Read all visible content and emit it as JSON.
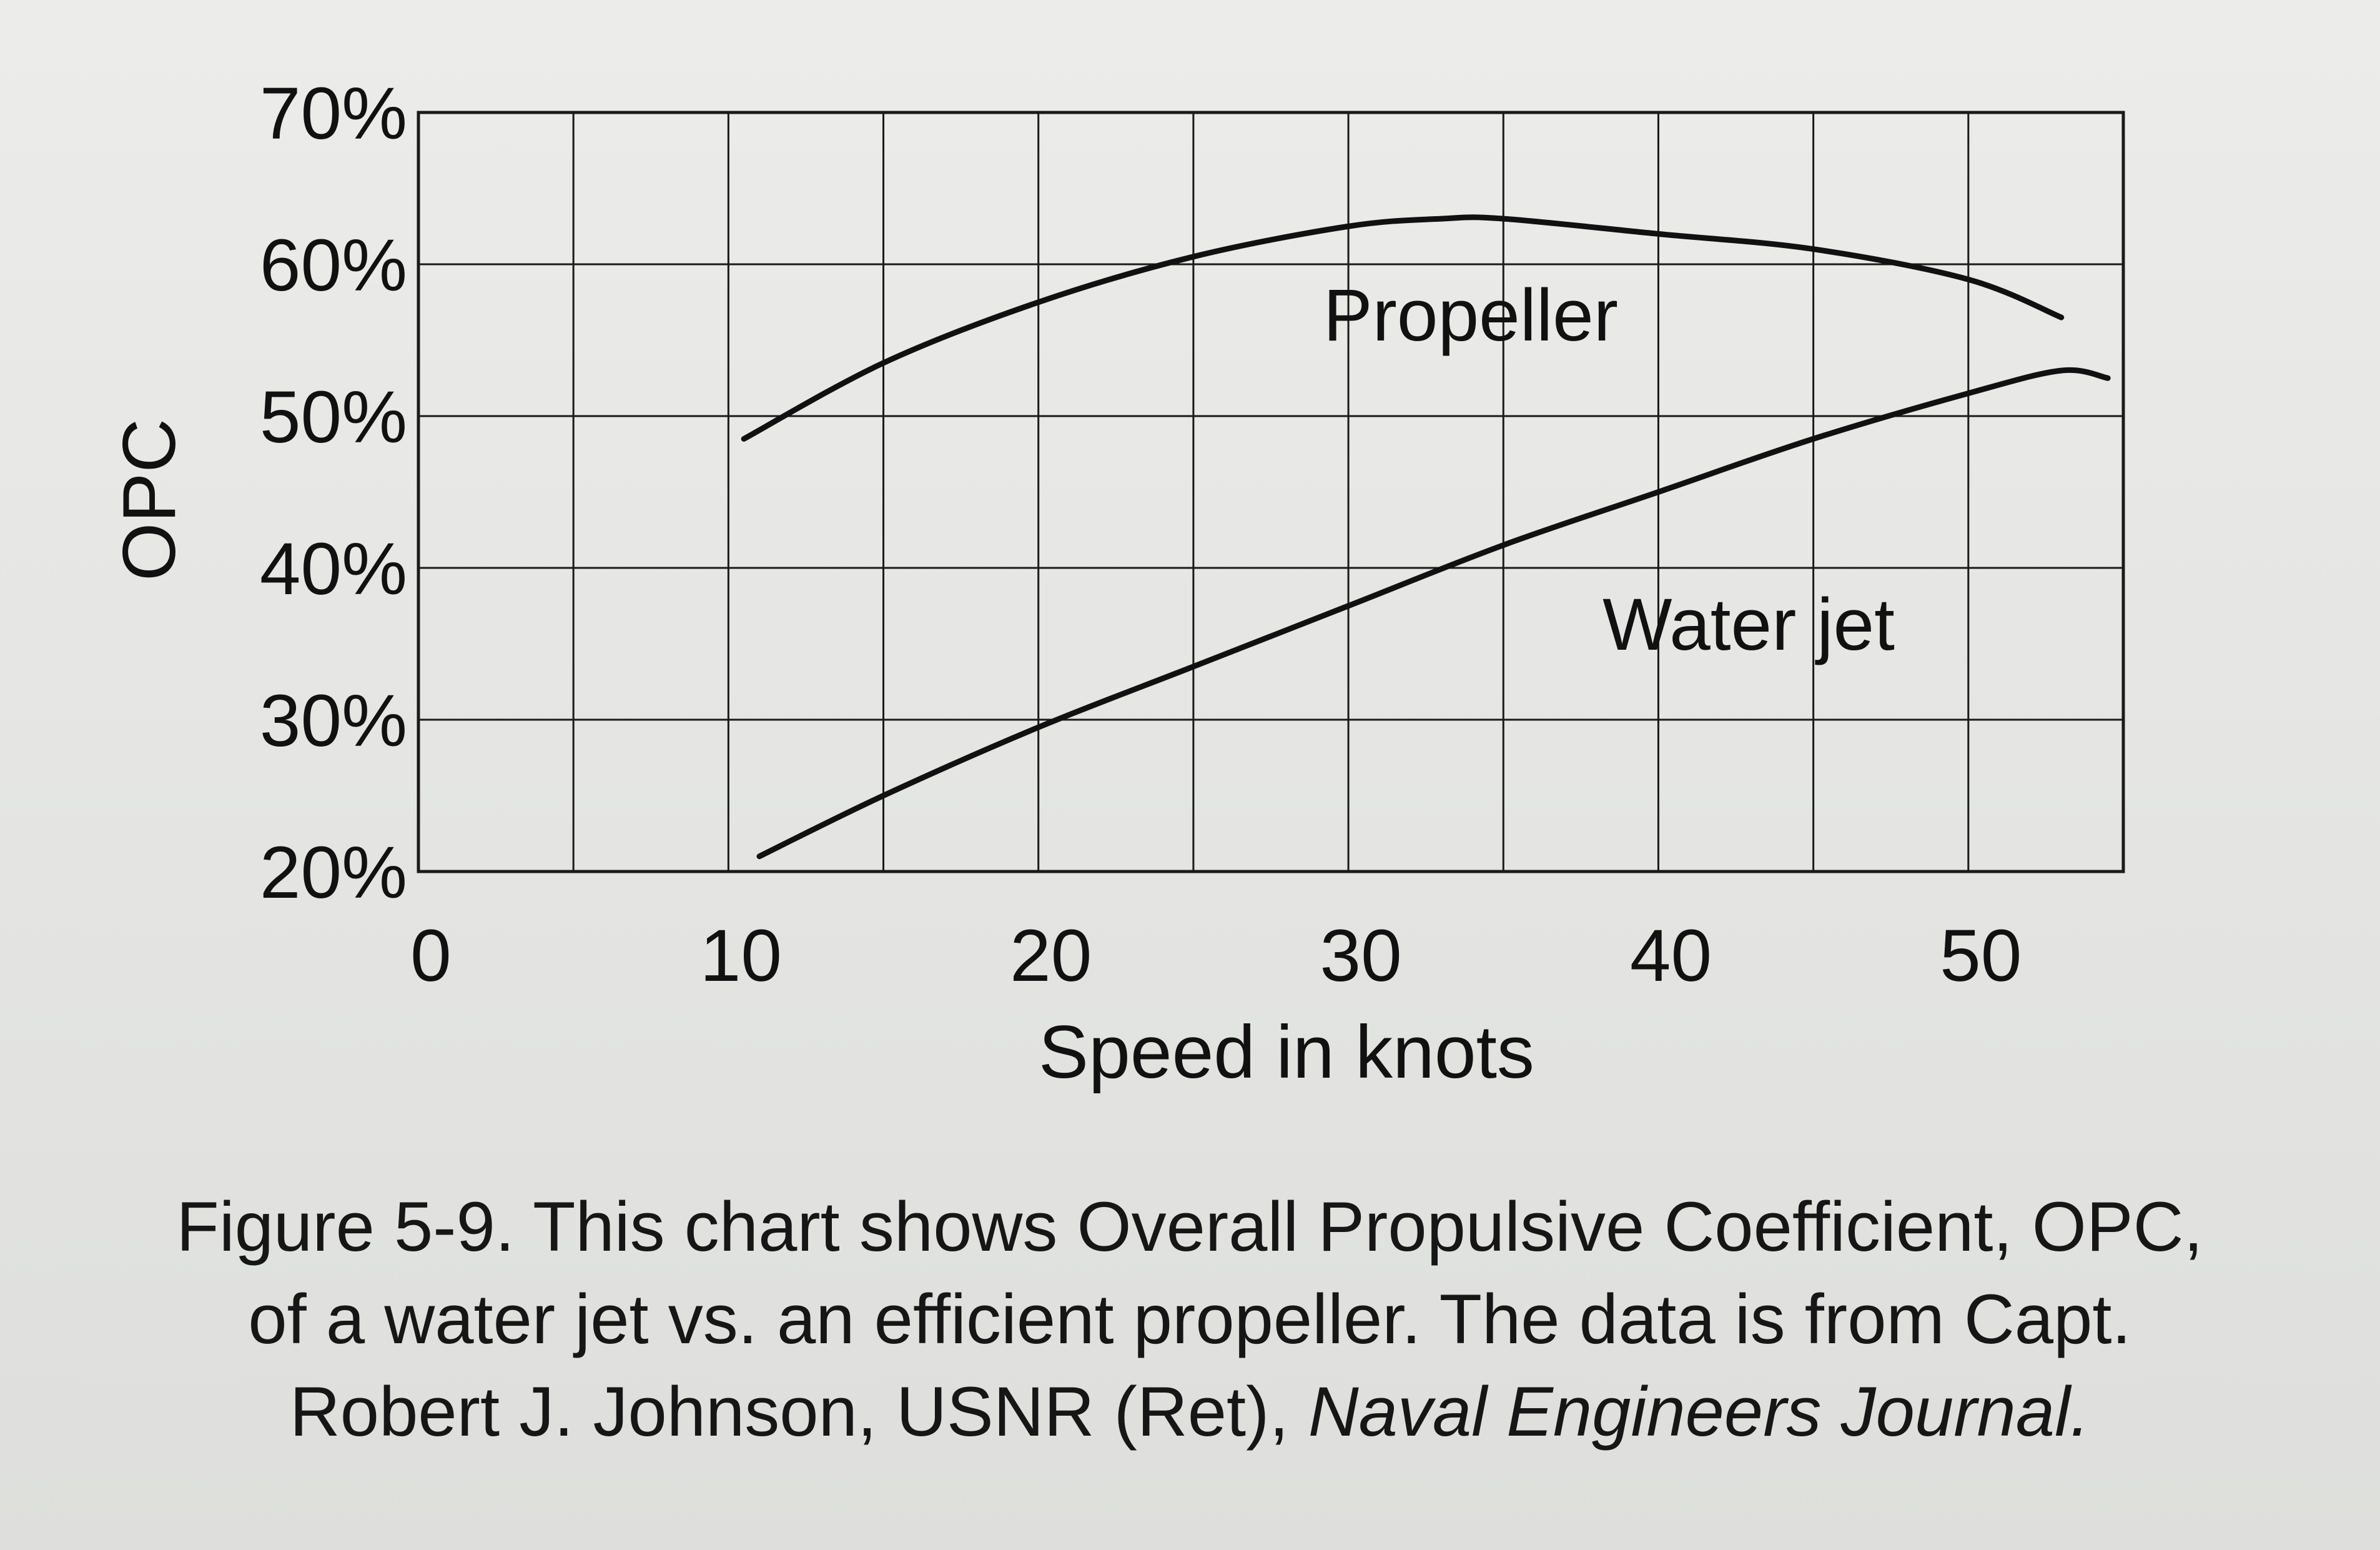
{
  "chart_data": {
    "type": "line",
    "title": "",
    "xlabel": "Speed in knots",
    "ylabel": "OPC",
    "xlim": [
      0,
      55
    ],
    "ylim": [
      20,
      70
    ],
    "x_ticks": [
      0,
      10,
      20,
      30,
      40,
      50
    ],
    "x_tick_labels": [
      "0",
      "10",
      "20",
      "30",
      "40",
      "50"
    ],
    "y_ticks": [
      20,
      30,
      40,
      50,
      60,
      70
    ],
    "y_tick_labels": [
      "20%",
      "30%",
      "40%",
      "50%",
      "60%",
      "70%"
    ],
    "grid": true,
    "legend": "none",
    "series": [
      {
        "name": "Propeller",
        "x": [
          10.5,
          15,
          20,
          25,
          30,
          33,
          35,
          40,
          45,
          50,
          53
        ],
        "y": [
          48.5,
          53.5,
          57.5,
          60.5,
          62.5,
          63,
          63,
          62,
          61,
          59,
          56.5
        ]
      },
      {
        "name": "Water jet",
        "x": [
          11,
          15,
          20,
          25,
          30,
          35,
          40,
          45,
          50,
          53,
          54.5
        ],
        "y": [
          21,
          25,
          29.5,
          33.5,
          37.5,
          41.5,
          45,
          48.5,
          51.5,
          53,
          52.5
        ]
      }
    ]
  },
  "caption": {
    "line1": "Figure 5-9.  This chart shows Overall Propulsive Coefficient, OPC,",
    "line2": "of a water jet vs. an efficient propeller.  The data is from Capt.",
    "line3_prefix": "Robert J. Johnson, USNR (Ret), ",
    "line3_journal": "Naval Engineers Journal."
  }
}
